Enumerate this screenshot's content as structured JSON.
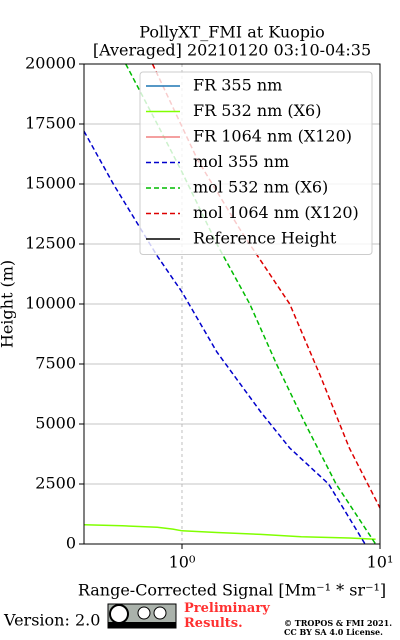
{
  "chart_data": {
    "type": "profile",
    "title": "PollyXT_FMI at Kuopio",
    "subtitle": "[Averaged] 20210120 03:10-04:35",
    "x_label": "Range-Corrected Signal [Mm⁻¹ * sr⁻¹]",
    "y_label": "Height (m)",
    "xscale": "log",
    "xlim": [
      0.32,
      10
    ],
    "xticks": [
      {
        "value": 1,
        "label": "10⁰"
      },
      {
        "value": 10,
        "label": "10¹"
      }
    ],
    "ylim": [
      0,
      20000
    ],
    "yticks": [
      0,
      2500,
      5000,
      7500,
      10000,
      12500,
      15000,
      17500,
      20000
    ],
    "grid": true,
    "legend": "upper right",
    "series": [
      {
        "name": "FR 355 nm",
        "color": "#1f77b4",
        "dash": false,
        "values": [],
        "heights": []
      },
      {
        "name": "FR 532 nm (X6)",
        "color": "#80ff00",
        "dash": false,
        "values": [
          0.32,
          0.5,
          0.75,
          0.9,
          1.0,
          1.5,
          2.5,
          4,
          7,
          9.5
        ],
        "heights": [
          800,
          760,
          700,
          620,
          550,
          480,
          400,
          300,
          250,
          200
        ]
      },
      {
        "name": "FR 1064 nm (X120)",
        "color": "#f08080",
        "dash": false,
        "values": [],
        "heights": []
      },
      {
        "name": "mol 355 nm",
        "color": "#0000cc",
        "dash": true,
        "values": [
          0.32,
          0.45,
          0.75,
          1.0,
          1.5,
          2.5,
          3.5,
          5.5,
          8.4
        ],
        "heights": [
          17200,
          15000,
          12000,
          10500,
          8000,
          5500,
          4000,
          2500,
          0
        ]
      },
      {
        "name": "mol 532 nm (X6)",
        "color": "#00bb00",
        "dash": true,
        "values": [
          0.52,
          0.75,
          1.0,
          1.5,
          2.2,
          3,
          4.2,
          6,
          9.5
        ],
        "heights": [
          20000,
          17500,
          15500,
          12500,
          10000,
          7500,
          5000,
          2500,
          0
        ]
      },
      {
        "name": "mol 1064 nm (X120)",
        "color": "#dd0000",
        "dash": true,
        "values": [
          0.71,
          1.2,
          2,
          3.5,
          5,
          7,
          10
        ],
        "heights": [
          20000,
          16000,
          13000,
          10000,
          7000,
          4000,
          1500
        ]
      },
      {
        "name": "Reference Height",
        "color": "#000000",
        "dash": false,
        "values": [],
        "heights": []
      }
    ],
    "version": "Version: 2.0",
    "notice": "Preliminary Results.",
    "copyright": [
      "© TROPOS & FMI 2021.",
      "CC BY SA 4.0 License."
    ]
  }
}
